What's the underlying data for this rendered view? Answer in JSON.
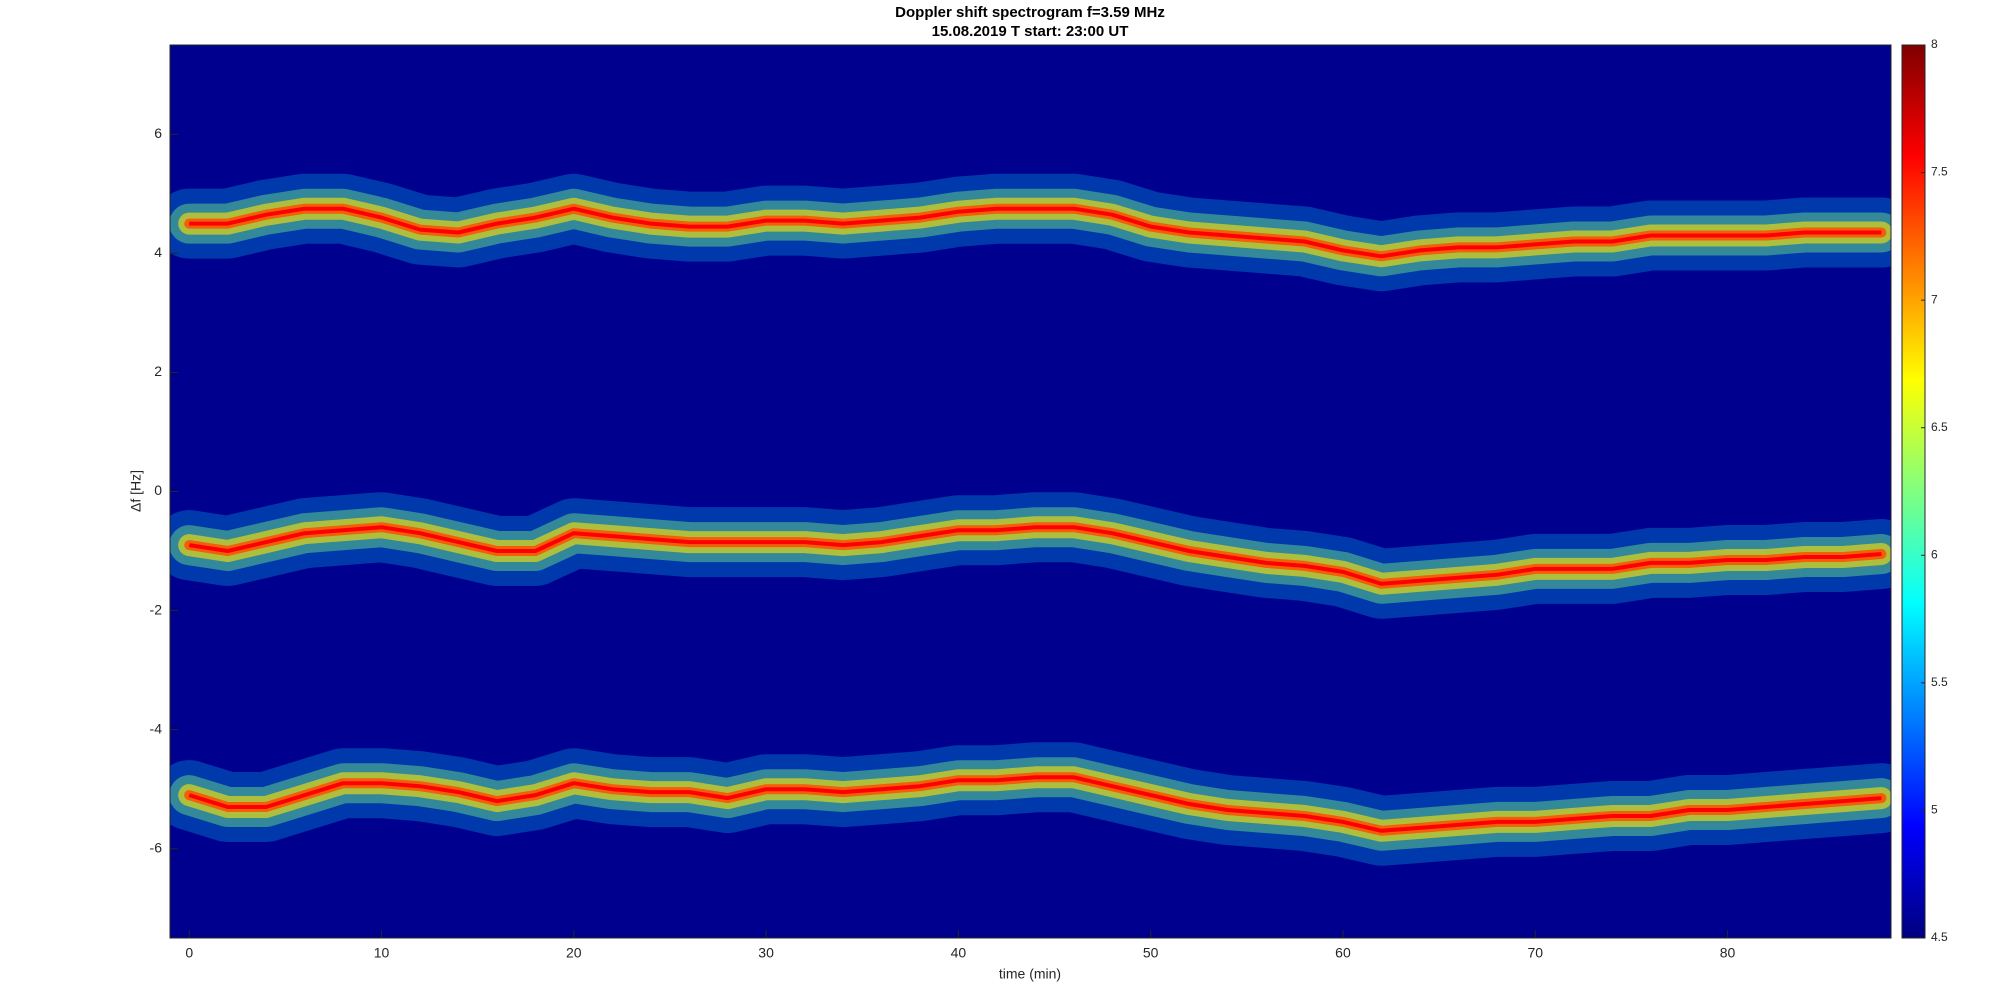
{
  "chart_data": {
    "type": "spectrogram",
    "title": "Doppler shift spectrogram f=3.59 MHz",
    "subtitle": "15.08.2019    T start: 23:00 UT",
    "xlabel": "time (min)",
    "ylabel": "Δf [Hz]",
    "xlim": [
      -1,
      88.5
    ],
    "xticks": [
      0,
      10,
      20,
      30,
      40,
      50,
      60,
      70,
      80
    ],
    "ylim": [
      -7.5,
      7.5
    ],
    "yticks": [
      -6,
      -4,
      -2,
      0,
      2,
      4,
      6
    ],
    "background": "#00008f",
    "colormap": "jet",
    "clim": [
      4.5,
      8
    ],
    "cticks": [
      4.5,
      5,
      5.5,
      6,
      6.5,
      7,
      7.5,
      8
    ],
    "x": [
      0,
      2,
      4,
      6,
      8,
      10,
      12,
      14,
      16,
      18,
      20,
      22,
      24,
      26,
      28,
      30,
      32,
      34,
      36,
      38,
      40,
      42,
      44,
      46,
      48,
      50,
      52,
      54,
      56,
      58,
      60,
      62,
      64,
      66,
      68,
      70,
      72,
      74,
      76,
      78,
      80,
      82,
      84,
      86,
      88
    ],
    "series": [
      {
        "color": "#ff0000",
        "values": [
          4.5,
          4.5,
          4.65,
          4.75,
          4.75,
          4.6,
          4.4,
          4.35,
          4.5,
          4.6,
          4.75,
          4.6,
          4.5,
          4.45,
          4.45,
          4.55,
          4.55,
          4.5,
          4.55,
          4.6,
          4.7,
          4.75,
          4.75,
          4.75,
          4.65,
          4.45,
          4.35,
          4.3,
          4.25,
          4.2,
          4.05,
          3.95,
          4.05,
          4.1,
          4.1,
          4.15,
          4.2,
          4.2,
          4.3,
          4.3,
          4.3,
          4.3,
          4.35,
          4.35,
          4.35
        ]
      },
      {
        "color": "#ff0000",
        "values": [
          -0.9,
          -1.0,
          -0.85,
          -0.7,
          -0.65,
          -0.6,
          -0.7,
          -0.85,
          -1.0,
          -1.0,
          -0.7,
          -0.75,
          -0.8,
          -0.85,
          -0.85,
          -0.85,
          -0.85,
          -0.9,
          -0.85,
          -0.75,
          -0.65,
          -0.65,
          -0.6,
          -0.6,
          -0.7,
          -0.85,
          -1.0,
          -1.1,
          -1.2,
          -1.25,
          -1.35,
          -1.55,
          -1.5,
          -1.45,
          -1.4,
          -1.3,
          -1.3,
          -1.3,
          -1.2,
          -1.2,
          -1.15,
          -1.15,
          -1.1,
          -1.1,
          -1.05
        ]
      },
      {
        "color": "#ff0000",
        "values": [
          -5.1,
          -5.3,
          -5.3,
          -5.1,
          -4.9,
          -4.9,
          -4.95,
          -5.05,
          -5.2,
          -5.1,
          -4.9,
          -5.0,
          -5.05,
          -5.05,
          -5.15,
          -5.0,
          -5.0,
          -5.05,
          -5.0,
          -4.95,
          -4.85,
          -4.85,
          -4.8,
          -4.8,
          -4.95,
          -5.1,
          -5.25,
          -5.35,
          -5.4,
          -5.45,
          -5.55,
          -5.7,
          -5.65,
          -5.6,
          -5.55,
          -5.55,
          -5.5,
          -5.45,
          -5.45,
          -5.35,
          -5.35,
          -5.3,
          -5.25,
          -5.2,
          -5.15
        ]
      }
    ]
  }
}
